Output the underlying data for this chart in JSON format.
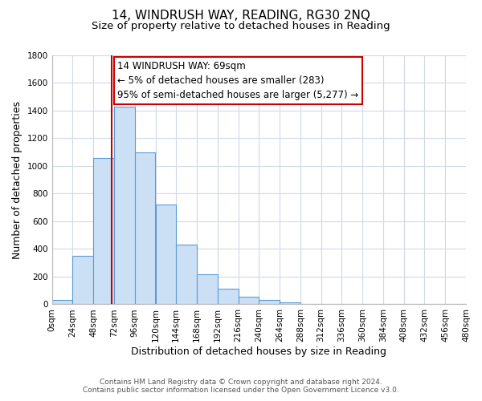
{
  "title": "14, WINDRUSH WAY, READING, RG30 2NQ",
  "subtitle": "Size of property relative to detached houses in Reading",
  "xlabel": "Distribution of detached houses by size in Reading",
  "ylabel": "Number of detached properties",
  "footnote1": "Contains HM Land Registry data © Crown copyright and database right 2024.",
  "footnote2": "Contains public sector information licensed under the Open Government Licence v3.0.",
  "bin_edges": [
    0,
    24,
    48,
    72,
    96,
    120,
    144,
    168,
    192,
    216,
    240,
    264,
    288,
    312,
    336,
    360,
    384,
    408,
    432,
    456,
    480
  ],
  "bin_counts": [
    30,
    350,
    1060,
    1430,
    1100,
    720,
    430,
    220,
    110,
    55,
    30,
    15,
    5,
    0,
    0,
    0,
    0,
    0,
    0,
    0
  ],
  "bar_facecolor": "#cce0f5",
  "bar_edgecolor": "#5b9bd5",
  "grid_color": "#d0d8e8",
  "property_line_x": 69,
  "property_line_color": "#cc0000",
  "annotation_line1": "14 WINDRUSH WAY: 69sqm",
  "annotation_line2": "← 5% of detached houses are smaller (283)",
  "annotation_line3": "95% of semi-detached houses are larger (5,277) →",
  "annotation_box_edgecolor": "#cc0000",
  "annotation_box_facecolor": "#ffffff",
  "ylim": [
    0,
    1800
  ],
  "yticks": [
    0,
    200,
    400,
    600,
    800,
    1000,
    1200,
    1400,
    1600,
    1800
  ],
  "xtick_labels": [
    "0sqm",
    "24sqm",
    "48sqm",
    "72sqm",
    "96sqm",
    "120sqm",
    "144sqm",
    "168sqm",
    "192sqm",
    "216sqm",
    "240sqm",
    "264sqm",
    "288sqm",
    "312sqm",
    "336sqm",
    "360sqm",
    "384sqm",
    "408sqm",
    "432sqm",
    "456sqm",
    "480sqm"
  ],
  "background_color": "#ffffff",
  "title_fontsize": 11,
  "subtitle_fontsize": 9.5,
  "axis_label_fontsize": 9,
  "tick_fontsize": 7.5,
  "annotation_fontsize": 8.5,
  "footnote_fontsize": 6.5
}
